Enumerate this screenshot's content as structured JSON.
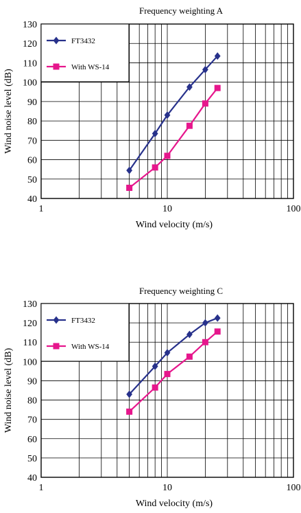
{
  "chart_data": [
    {
      "type": "line",
      "title": "Frequency weighting A",
      "xlabel": "Wind velocity (m/s)",
      "ylabel": "Wind noise level (dB)",
      "x_scale": "log",
      "xlim": [
        1,
        100
      ],
      "ylim": [
        40,
        130
      ],
      "x_ticks": [
        1,
        10,
        100
      ],
      "x_tick_labels": [
        "1",
        "10",
        "100"
      ],
      "y_ticks": [
        40,
        50,
        60,
        70,
        80,
        90,
        100,
        110,
        120,
        130
      ],
      "y_tick_labels": [
        "40",
        "50",
        "60",
        "70",
        "80",
        "90",
        "100",
        "110",
        "120",
        "130"
      ],
      "grid": true,
      "legend_position": "top-left",
      "series": [
        {
          "name": "FT3432",
          "color": "#27318b",
          "marker": "diamond",
          "x": [
            5,
            8,
            10,
            15,
            20,
            25
          ],
          "y": [
            54.5,
            73.5,
            83,
            97.5,
            106.5,
            113.5
          ]
        },
        {
          "name": "With WS-14",
          "color": "#e6168c",
          "marker": "square",
          "x": [
            5,
            8,
            10,
            15,
            20,
            25
          ],
          "y": [
            45.5,
            56,
            62,
            77.5,
            89,
            97
          ]
        }
      ]
    },
    {
      "type": "line",
      "title": "Frequency weighting C",
      "xlabel": "Wind velocity (m/s)",
      "ylabel": "Wind noise level (dB)",
      "x_scale": "log",
      "xlim": [
        1,
        100
      ],
      "ylim": [
        40,
        130
      ],
      "x_ticks": [
        1,
        10,
        100
      ],
      "x_tick_labels": [
        "1",
        "10",
        "100"
      ],
      "y_ticks": [
        40,
        50,
        60,
        70,
        80,
        90,
        100,
        110,
        120,
        130
      ],
      "y_tick_labels": [
        "40",
        "50",
        "60",
        "70",
        "80",
        "90",
        "100",
        "110",
        "120",
        "130"
      ],
      "grid": true,
      "legend_position": "top-left",
      "series": [
        {
          "name": "FT3432",
          "color": "#27318b",
          "marker": "diamond",
          "x": [
            5,
            8,
            10,
            15,
            20,
            25
          ],
          "y": [
            83,
            97.5,
            104.5,
            114,
            120,
            122.5
          ]
        },
        {
          "name": "With WS-14",
          "color": "#e6168c",
          "marker": "square",
          "x": [
            5,
            8,
            10,
            15,
            20,
            25
          ],
          "y": [
            74,
            86.5,
            93.5,
            102.5,
            110,
            115.5
          ]
        }
      ]
    }
  ]
}
